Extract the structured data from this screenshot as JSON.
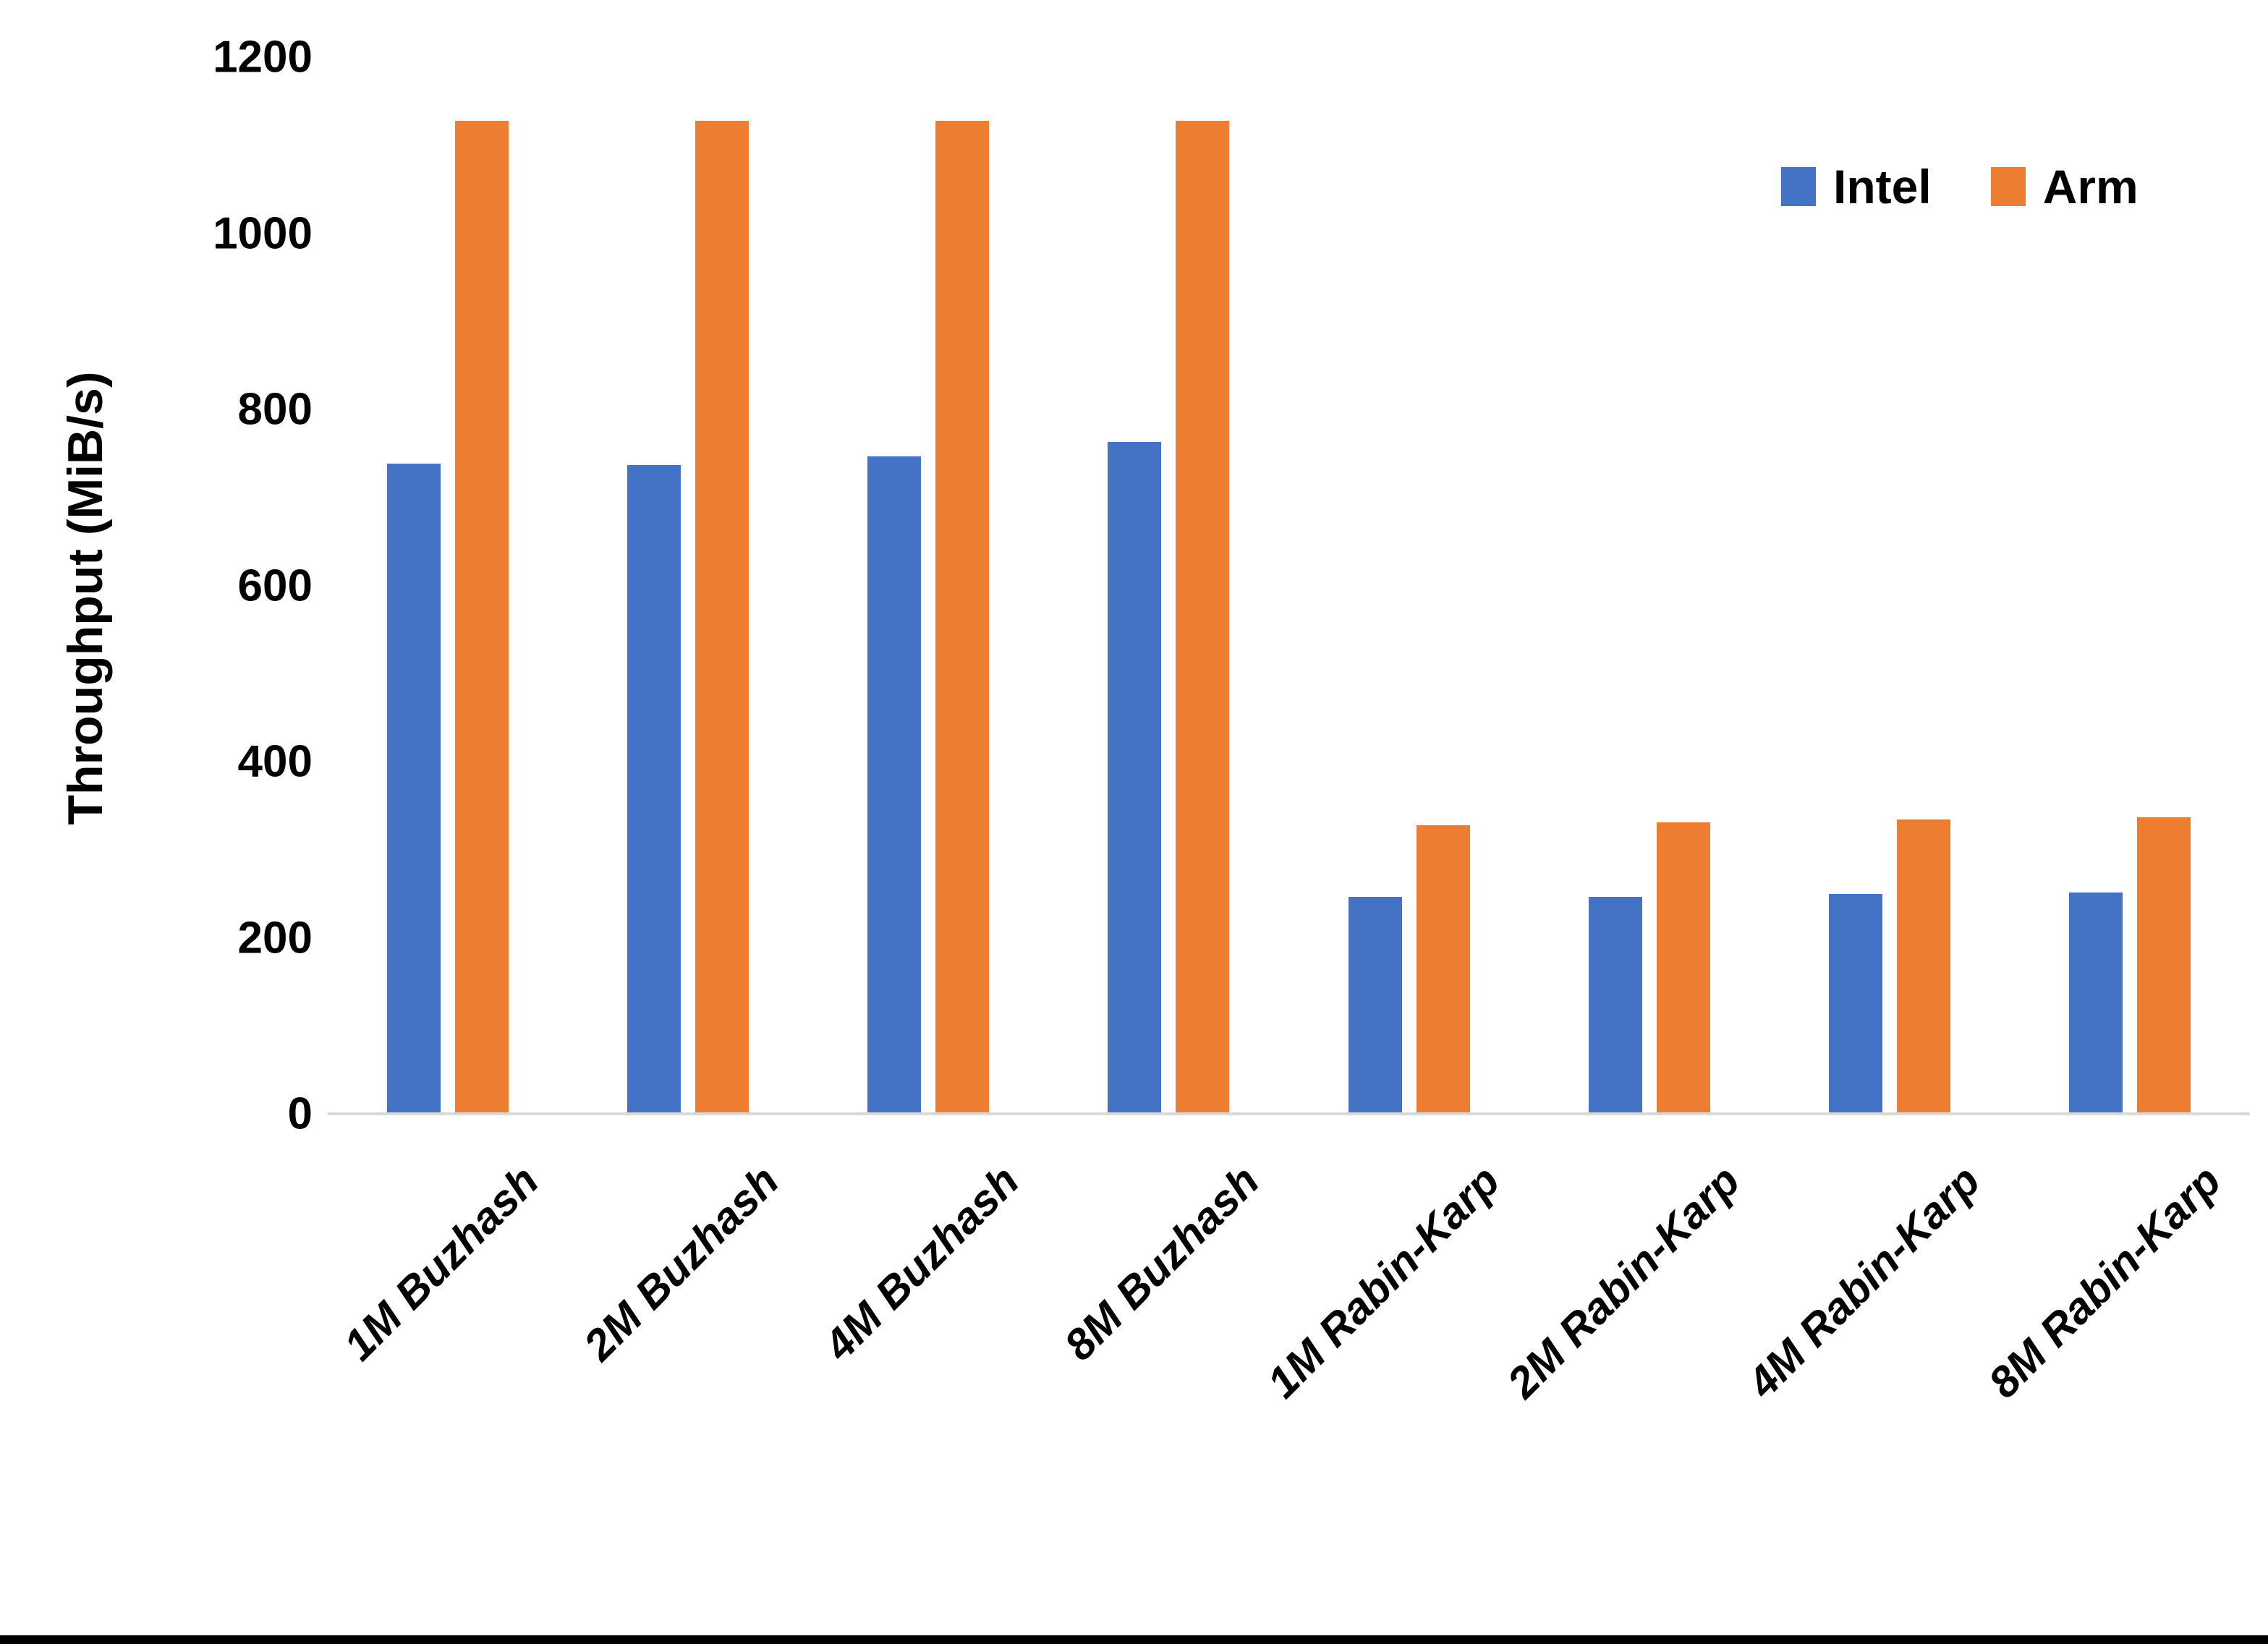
{
  "chart_data": {
    "type": "bar",
    "title": "",
    "xlabel": "",
    "ylabel": "Throughput (MiB/s)",
    "ylim": [
      0,
      1200
    ],
    "yticks": [
      0,
      200,
      400,
      600,
      800,
      1000,
      1200
    ],
    "grid": false,
    "legend_position": "top-right",
    "categories": [
      "1M Buzhash",
      "2M Buzhash",
      "4M Buzhash",
      "8M Buzhash",
      "1M Rabin-Karp",
      "2M Rabin-Karp",
      "4M Rabin-Karp",
      "8M Rabin-Karp"
    ],
    "series": [
      {
        "name": "Intel",
        "color": "#4472C4",
        "values": [
          738,
          737,
          747,
          763,
          246,
          246,
          250,
          251
        ]
      },
      {
        "name": "Arm",
        "color": "#ED7D31",
        "values": [
          1128,
          1128,
          1128,
          1128,
          328,
          331,
          334,
          337
        ]
      }
    ]
  },
  "colors": {
    "background": "#FFFFFF",
    "text": "#000000",
    "axis_line": "#D9D9D9",
    "bottom_edge_bar": "#000000"
  }
}
